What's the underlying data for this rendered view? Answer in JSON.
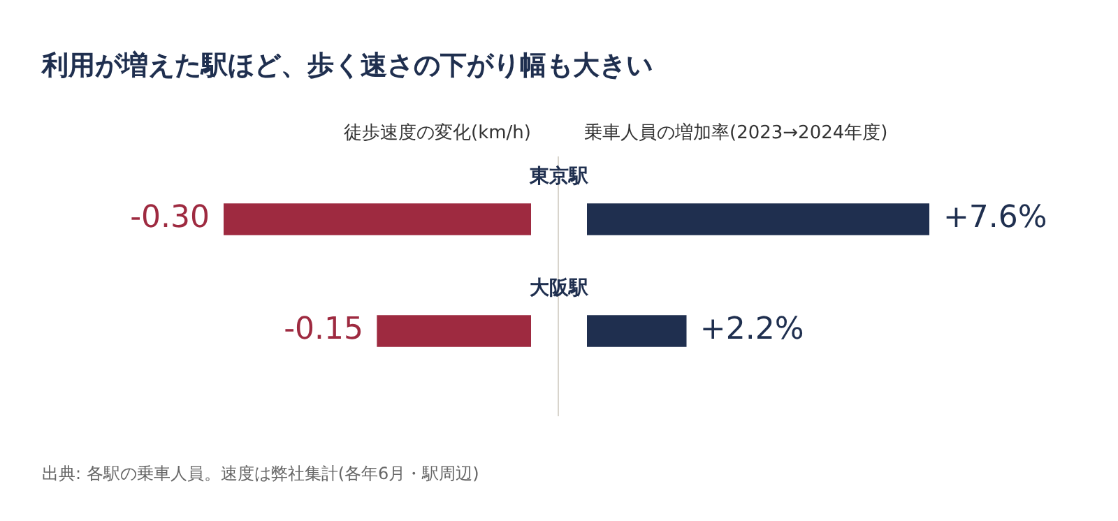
{
  "chart_data": [
    {
      "type": "bar",
      "orientation": "horizontal",
      "title": "利用が増えた駅ほど、歩く速さの下がり幅も大きい",
      "xlabel": "徒歩速度の変化(km/h)",
      "categories": [
        "東京駅",
        "大阪駅"
      ],
      "values": [
        -0.3,
        -0.15
      ],
      "value_labels": [
        "-0.30",
        "-0.15"
      ],
      "color": "#9e2a40",
      "xlim": [
        -0.3,
        0
      ],
      "tick_labels": "y",
      "annotations": [
        "出典: 各駅の乗車人員。速度は弊社集計(各年6月・駅周辺)"
      ]
    },
    {
      "type": "bar",
      "orientation": "horizontal",
      "xlabel": "乗車人員の増加率(2023→2024年度)",
      "categories": [
        null,
        null
      ],
      "values": [
        7.6,
        2.2
      ],
      "value_labels": [
        "+7.6%",
        "+2.2%"
      ],
      "color": "#1f2f4f",
      "xlim": [
        0,
        7.6
      ],
      "tick_labels": false
    }
  ]
}
